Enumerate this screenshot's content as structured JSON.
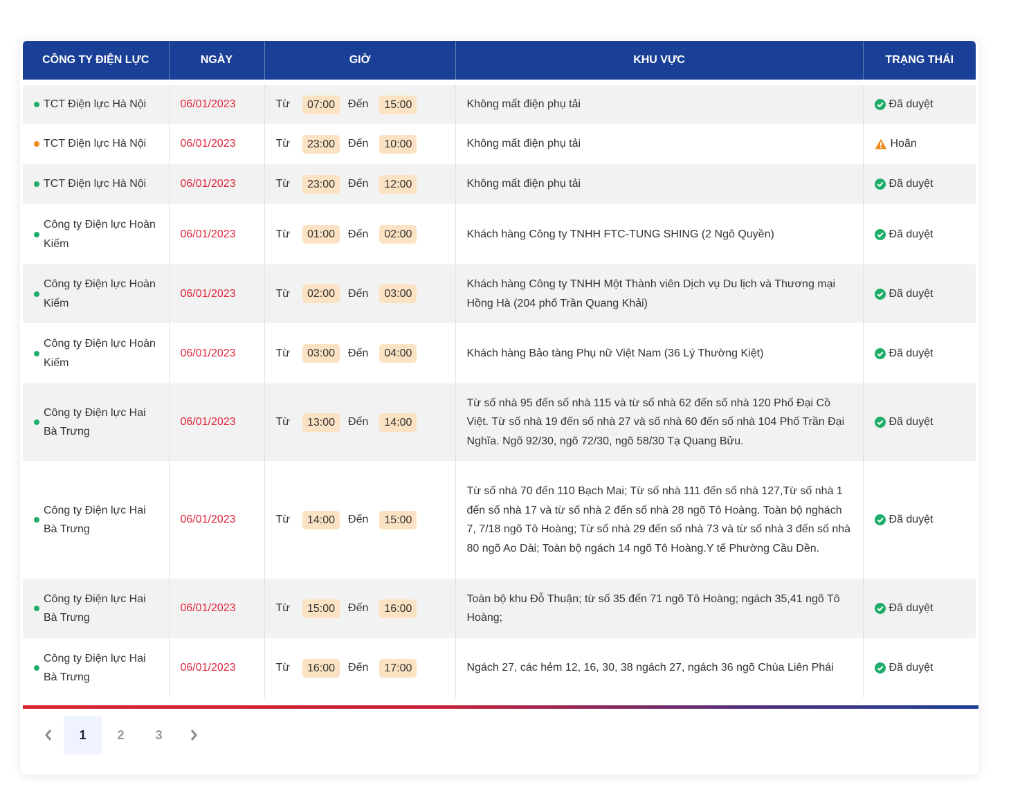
{
  "headers": {
    "company": "CÔNG TY ĐIỆN LỰC",
    "date": "NGÀY",
    "time": "GIỜ",
    "area": "KHU VỰC",
    "status": "TRẠNG THÁI"
  },
  "labels": {
    "from": "Từ",
    "to": "Đến"
  },
  "rows": [
    {
      "company": "TCT Điện lực Hà Nội",
      "dot": "green",
      "date": "06/01/2023",
      "start": "07:00",
      "end": "15:00",
      "area": "Không mất điện phụ tải",
      "status": "Đã duyệt",
      "status_type": "approved"
    },
    {
      "company": "TCT Điện lực Hà Nội",
      "dot": "orange",
      "date": "06/01/2023",
      "start": "23:00",
      "end": "10:00",
      "area": "Không mất điện phụ tải",
      "status": "Hoãn",
      "status_type": "postponed"
    },
    {
      "company": "TCT Điện lực Hà Nội",
      "dot": "green",
      "date": "06/01/2023",
      "start": "23:00",
      "end": "12:00",
      "area": "Không mất điện phụ tải",
      "status": "Đã duyệt",
      "status_type": "approved"
    },
    {
      "company": "Công ty Điện lực Hoàn Kiếm",
      "dot": "green",
      "date": "06/01/2023",
      "start": "01:00",
      "end": "02:00",
      "area": "Khách hàng Công ty TNHH FTC-TUNG SHING (2 Ngô Quyền)",
      "status": "Đã duyệt",
      "status_type": "approved"
    },
    {
      "company": "Công ty Điện lực Hoàn Kiếm",
      "dot": "green",
      "date": "06/01/2023",
      "start": "02:00",
      "end": "03:00",
      "area": "Khách hàng Công ty TNHH Một Thành viên Dịch vụ Du lịch và Thương mại Hồng Hà (204 phố Trần Quang Khải)",
      "status": "Đã duyệt",
      "status_type": "approved"
    },
    {
      "company": "Công ty Điện lực Hoàn Kiếm",
      "dot": "green",
      "date": "06/01/2023",
      "start": "03:00",
      "end": "04:00",
      "area": "Khách hàng Bảo tàng Phụ nữ Việt Nam (36 Lý Thường Kiệt)",
      "status": "Đã duyệt",
      "status_type": "approved"
    },
    {
      "company": "Công ty Điện lực Hai Bà Trưng",
      "dot": "green",
      "date": "06/01/2023",
      "start": "13:00",
      "end": "14:00",
      "area": "Từ số nhà 95 đến số nhà 115 và từ số nhà 62 đến số nhà 120 Phố Đại Cồ Việt. Từ số nhà 19 đến số nhà 27 và số nhà 60 đến số nhà 104 Phố Trần Đại Nghĩa. Ngõ 92/30, ngõ 72/30, ngõ 58/30 Tạ Quang Bửu.",
      "status": "Đã duyệt",
      "status_type": "approved"
    },
    {
      "company": "Công ty Điện lực Hai Bà Trưng",
      "dot": "green",
      "date": "06/01/2023",
      "start": "14:00",
      "end": "15:00",
      "area": "Từ số nhà 70 đến 110 Bạch Mai; Từ số nhà 111 đến số nhà 127,Từ số nhà 1 đến số nhà 17 và từ số nhà 2 đến số nhà 28 ngõ Tô Hoàng. Toàn bộ nghách 7, 7/18 ngõ Tô Hoàng; Từ số nhà 29 đến số nhà 73 và từ số nhà 3 đến số nhà 80 ngõ Ao Dài; Toàn bộ ngách 14 ngõ Tô Hoàng.Y tế Phường Cầu Dền.",
      "status": "Đã duyệt",
      "status_type": "approved"
    },
    {
      "company": "Công ty Điện lực Hai Bà Trưng",
      "dot": "green",
      "date": "06/01/2023",
      "start": "15:00",
      "end": "16:00",
      "area": "Toàn bộ khu Đỗ Thuận; từ số 35 đến 71 ngõ Tô Hoàng; ngách 35,41 ngõ Tô Hoàng;",
      "status": "Đã duyệt",
      "status_type": "approved"
    },
    {
      "company": "Công ty Điện lực Hai Bà Trưng",
      "dot": "green",
      "date": "06/01/2023",
      "start": "16:00",
      "end": "17:00",
      "area": "Ngách 27, các hẻm 12, 16, 30, 38 ngách 27, ngách 36 ngõ Chùa Liên Phái",
      "status": "Đã duyệt",
      "status_type": "approved"
    }
  ],
  "pagination": {
    "pages": [
      "1",
      "2",
      "3"
    ],
    "current": "1"
  },
  "colors": {
    "header_bg": "#1a3f96",
    "date": "#e0233a",
    "approved": "#1fae6a",
    "postponed": "#f08a1c",
    "pill": "#fbe2c2"
  }
}
